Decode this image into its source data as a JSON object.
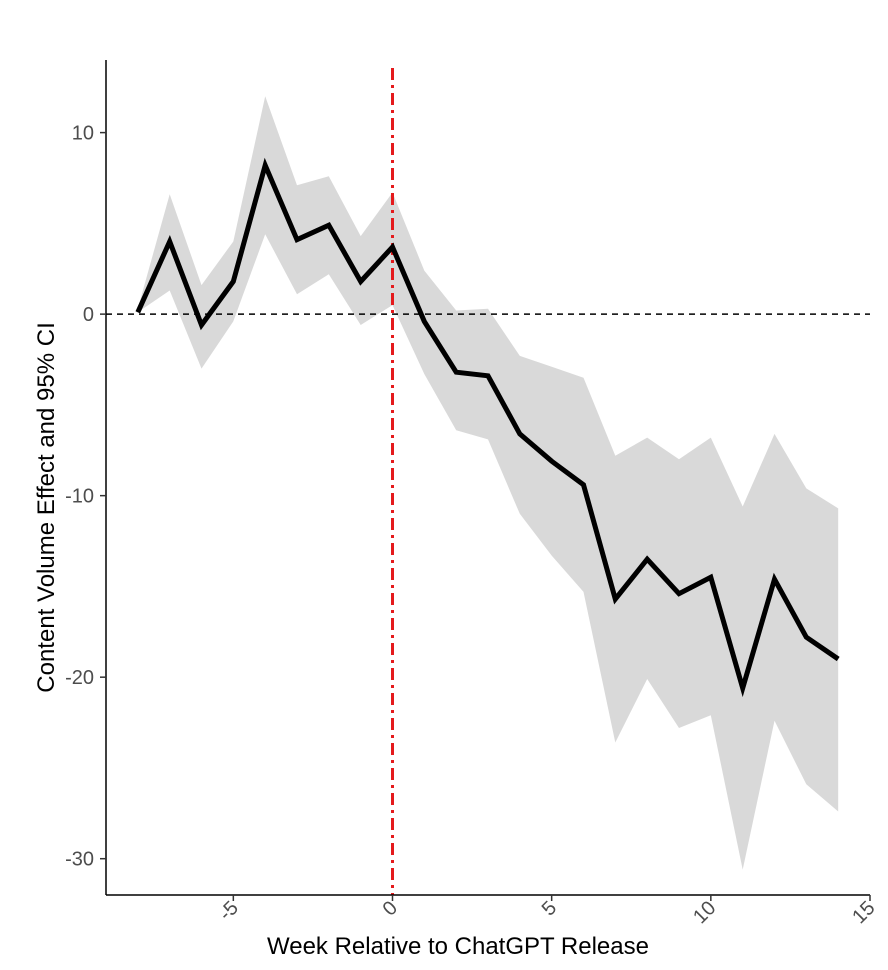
{
  "chart_data": {
    "type": "line",
    "title": "",
    "xlabel": "Week Relative to ChatGPT Release",
    "ylabel": "Content Volume Effect and 95% CI",
    "xlim": [
      -9,
      15
    ],
    "ylim": [
      -32,
      14
    ],
    "x_ticks": [
      -5,
      0,
      5,
      10,
      15
    ],
    "x_tick_labels": [
      "-5",
      "0",
      "5",
      "10",
      "15"
    ],
    "y_ticks": [
      -30,
      -20,
      -10,
      0,
      10
    ],
    "y_tick_labels": [
      "-30",
      "-20",
      "-10",
      "0",
      "10"
    ],
    "grid": false,
    "legend": "none",
    "x": [
      -8,
      -7,
      -6,
      -5,
      -4,
      -3,
      -2,
      -1,
      0,
      1,
      2,
      3,
      4,
      5,
      6,
      7,
      8,
      9,
      10,
      11,
      12,
      13,
      14
    ],
    "series": [
      {
        "estimate": [
          0.1,
          4.0,
          -0.6,
          1.8,
          8.2,
          4.1,
          4.9,
          1.8,
          3.7,
          -0.4,
          -3.2,
          -3.4,
          -6.6,
          -8.1,
          -9.4,
          -15.7,
          -13.5,
          -15.4,
          -14.5,
          -20.6,
          -14.6,
          -17.8,
          -19.0
        ],
        "ci_low": [
          0.1,
          1.3,
          -3.0,
          -0.4,
          4.4,
          1.1,
          2.2,
          -0.6,
          0.5,
          -3.3,
          -6.4,
          -6.9,
          -11.0,
          -13.3,
          -15.3,
          -23.6,
          -20.1,
          -22.8,
          -22.1,
          -30.6,
          -22.4,
          -25.9,
          -27.4
        ],
        "ci_high": [
          0.3,
          6.6,
          1.6,
          4.0,
          12.0,
          7.1,
          7.6,
          4.3,
          6.7,
          2.4,
          0.2,
          0.3,
          -2.3,
          -2.9,
          -3.5,
          -7.8,
          -6.8,
          -8.0,
          -6.8,
          -10.6,
          -6.6,
          -9.6,
          -10.7
        ]
      }
    ],
    "reference_lines": [
      {
        "axis": "y",
        "value": 0,
        "style": "dashed",
        "color": "#000000"
      },
      {
        "axis": "x",
        "value": 0,
        "style": "dotdash",
        "color": "#e41a1c"
      }
    ],
    "colors": {
      "line": "#000000",
      "ribbon": "#d9d9d9",
      "axis": "#000000",
      "tick_text": "#4d4d4d"
    }
  }
}
